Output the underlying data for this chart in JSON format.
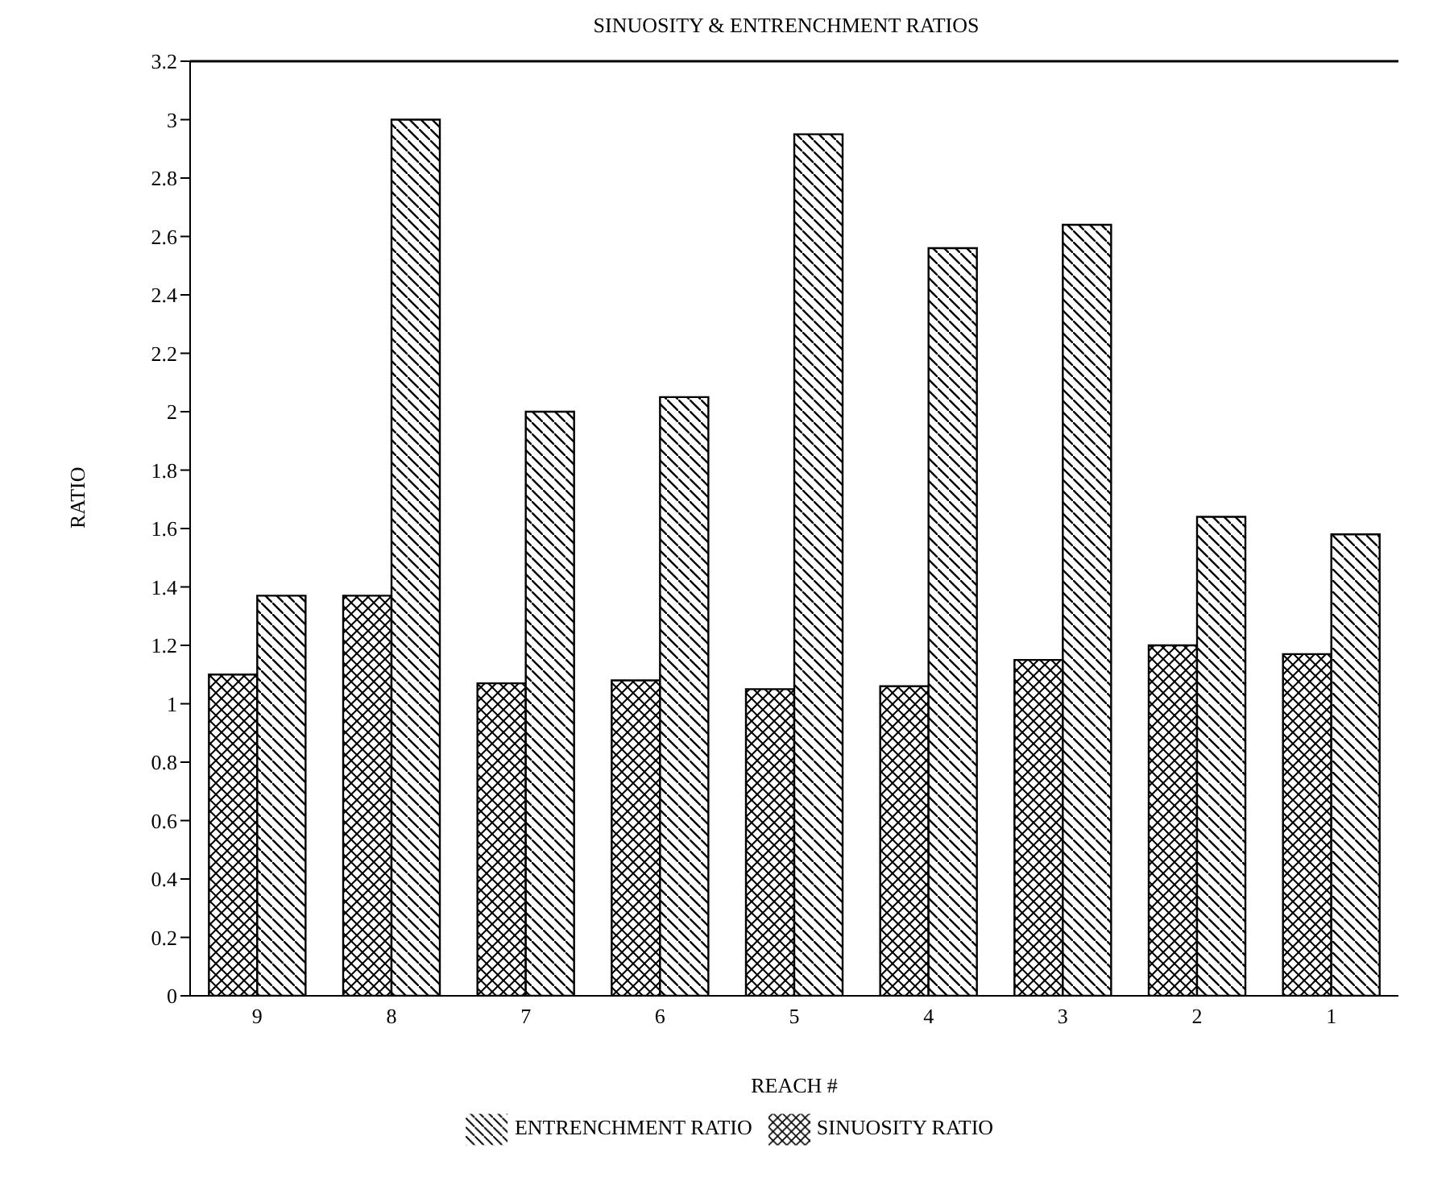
{
  "chart_data": {
    "type": "bar",
    "title": "SINUOSITY & ENTRENCHMENT RATIOS",
    "xlabel": "REACH #",
    "ylabel": "RATIO",
    "categories": [
      "9",
      "8",
      "7",
      "6",
      "5",
      "4",
      "3",
      "2",
      "1"
    ],
    "series": [
      {
        "name": "SINUOSITY RATIO",
        "color": "#000000",
        "values": [
          1.1,
          1.37,
          1.07,
          1.08,
          1.05,
          1.06,
          1.15,
          1.2,
          1.17
        ]
      },
      {
        "name": "ENTRENCHMENT RATIO",
        "color": "#000000",
        "values": [
          1.37,
          3.0,
          2.0,
          2.05,
          2.95,
          2.56,
          2.64,
          1.64,
          1.58
        ]
      }
    ],
    "ylim": [
      0,
      3.2
    ],
    "yticks": [
      0,
      0.2,
      0.4,
      0.6,
      0.8,
      1,
      1.2,
      1.4,
      1.6,
      1.8,
      2,
      2.2,
      2.4,
      2.6,
      2.8,
      3,
      3.2
    ],
    "grid": false,
    "legend": "bottom"
  }
}
